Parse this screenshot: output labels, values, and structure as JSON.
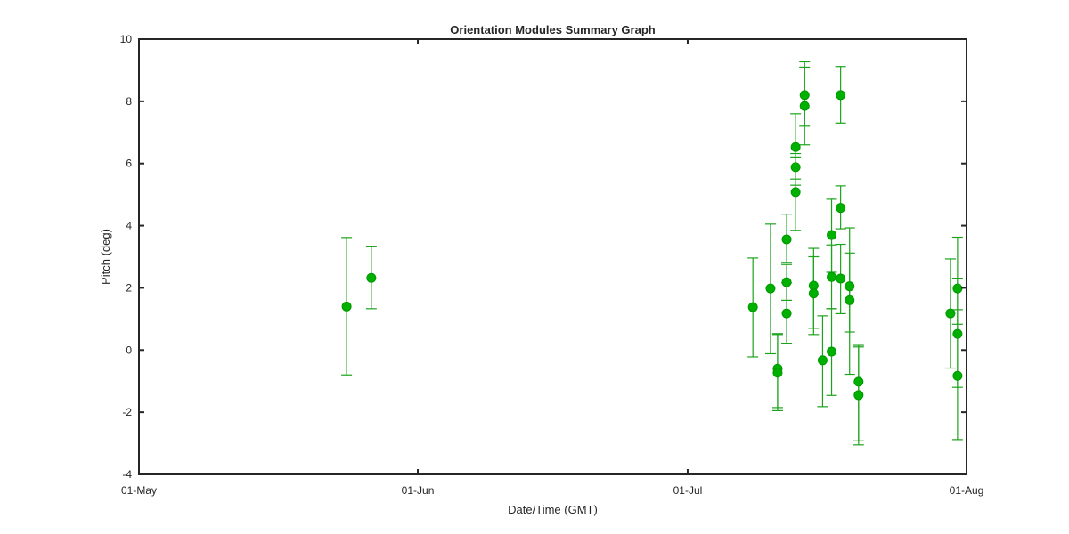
{
  "chart_data": {
    "type": "scatter",
    "title": "Orientation Modules Summary Graph",
    "xlabel": "Date/Time (GMT)",
    "ylabel": "Pitch (deg)",
    "x_axis_type": "date",
    "xlim": [
      "2015-05-01",
      "2015-08-01"
    ],
    "x_ticks": [
      {
        "value": "2015-05-01",
        "label": "01-May"
      },
      {
        "value": "2015-06-01",
        "label": "01-Jun"
      },
      {
        "value": "2015-07-01",
        "label": "01-Jul"
      },
      {
        "value": "2015-08-01",
        "label": "01-Aug"
      }
    ],
    "ylim": [
      -4,
      10
    ],
    "y_ticks": [
      -4,
      -2,
      0,
      2,
      4,
      6,
      8,
      10
    ],
    "y_tick_labels": [
      "-4",
      "-2",
      "0",
      "2",
      "4",
      "6",
      "8",
      "10"
    ],
    "grid": false,
    "marker_color": "#00b000",
    "errorbar_color": "#1ca31c",
    "series": [
      {
        "points": [
          {
            "x": "2015-05-24T02:00",
            "y": 1.4,
            "low": -0.8,
            "high": 3.62
          },
          {
            "x": "2015-05-26T20:00",
            "y": 2.32,
            "low": 1.33,
            "high": 3.34
          },
          {
            "x": "2015-07-08T06:00",
            "y": 1.38,
            "low": -0.22,
            "high": 2.96
          },
          {
            "x": "2015-07-10T05:00",
            "y": 1.98,
            "low": -0.12,
            "high": 4.05
          },
          {
            "x": "2015-07-11T00:00",
            "y": -0.6,
            "low": -1.85,
            "high": 0.53
          },
          {
            "x": "2015-07-11T00:00",
            "y": -0.73,
            "low": -1.95,
            "high": 0.5
          },
          {
            "x": "2015-07-12T00:00",
            "y": 3.56,
            "low": 2.82,
            "high": 4.37
          },
          {
            "x": "2015-07-12T00:00",
            "y": 2.18,
            "low": 1.6,
            "high": 2.75
          },
          {
            "x": "2015-07-12T00:00",
            "y": 1.18,
            "low": 0.22,
            "high": 2.16
          },
          {
            "x": "2015-07-13T00:00",
            "y": 6.53,
            "low": 5.5,
            "high": 7.6
          },
          {
            "x": "2015-07-13T00:00",
            "y": 5.88,
            "low": 5.3,
            "high": 6.32
          },
          {
            "x": "2015-07-13T00:00",
            "y": 5.08,
            "low": 3.85,
            "high": 6.21
          },
          {
            "x": "2015-07-14T00:00",
            "y": 8.2,
            "low": 7.2,
            "high": 9.27
          },
          {
            "x": "2015-07-14T00:00",
            "y": 7.85,
            "low": 6.6,
            "high": 9.1
          },
          {
            "x": "2015-07-15T00:00",
            "y": 2.07,
            "low": 0.7,
            "high": 3.27
          },
          {
            "x": "2015-07-15T00:00",
            "y": 1.82,
            "low": 0.5,
            "high": 3.0
          },
          {
            "x": "2015-07-16T00:00",
            "y": -0.33,
            "low": -1.82,
            "high": 1.1
          },
          {
            "x": "2015-07-17T00:00",
            "y": 3.7,
            "low": 2.5,
            "high": 4.85
          },
          {
            "x": "2015-07-17T00:00",
            "y": 2.35,
            "low": 1.33,
            "high": 3.38
          },
          {
            "x": "2015-07-17T00:00",
            "y": -0.05,
            "low": -1.46,
            "high": 1.33
          },
          {
            "x": "2015-07-18T00:00",
            "y": 8.2,
            "low": 7.3,
            "high": 9.12
          },
          {
            "x": "2015-07-18T00:00",
            "y": 4.57,
            "low": 3.9,
            "high": 5.28
          },
          {
            "x": "2015-07-18T00:00",
            "y": 2.3,
            "low": 1.17,
            "high": 3.4
          },
          {
            "x": "2015-07-19T00:00",
            "y": 2.05,
            "low": 0.58,
            "high": 3.93
          },
          {
            "x": "2015-07-19T00:00",
            "y": 1.6,
            "low": -0.78,
            "high": 3.12
          },
          {
            "x": "2015-07-20T00:00",
            "y": -1.02,
            "low": -2.92,
            "high": 0.15
          },
          {
            "x": "2015-07-20T00:00",
            "y": -1.45,
            "low": -3.05,
            "high": 0.1
          },
          {
            "x": "2015-07-30T05:00",
            "y": 1.18,
            "low": -0.58,
            "high": 2.93
          },
          {
            "x": "2015-07-31T00:00",
            "y": 1.98,
            "low": 0.83,
            "high": 3.63
          },
          {
            "x": "2015-07-31T00:00",
            "y": 0.52,
            "low": -1.2,
            "high": 2.31
          },
          {
            "x": "2015-07-31T00:00",
            "y": -0.83,
            "low": -2.88,
            "high": 1.3
          }
        ]
      }
    ]
  }
}
